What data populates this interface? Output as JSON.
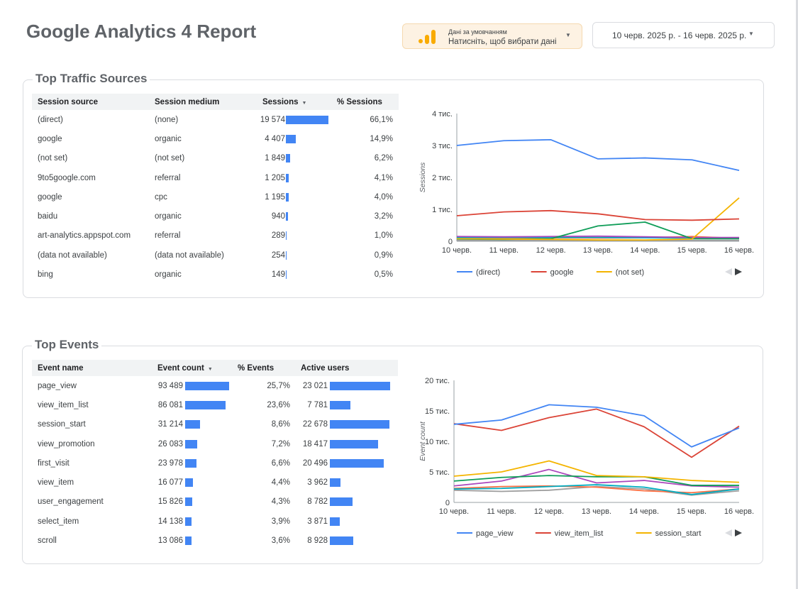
{
  "report": {
    "title": "Google Analytics 4 Report",
    "data_source": {
      "line1": "Дані за умовчанням",
      "line2": "Натисніть, щоб вибрати дані"
    },
    "date_range": "10 черв. 2025 р. - 16 черв. 2025 р."
  },
  "colors": {
    "blue": "#4285f4",
    "red": "#db4437",
    "yellow": "#f4b400",
    "green": "#0f9d58",
    "purple": "#ab47bc",
    "teal": "#00acc1",
    "orange": "#ff7043",
    "gray": "#9e9e9e",
    "datasource_icon": "#f9ab00"
  },
  "traffic": {
    "title": "Top Traffic Sources",
    "columns": [
      "Session source",
      "Session medium",
      "Sessions",
      "% Sessions"
    ],
    "rows": [
      {
        "source": "(direct)",
        "medium": "(none)",
        "sessions": "19 574",
        "sessions_value": 19574,
        "pct": "66,1%"
      },
      {
        "source": "google",
        "medium": "organic",
        "sessions": "4 407",
        "sessions_value": 4407,
        "pct": "14,9%"
      },
      {
        "source": "(not set)",
        "medium": "(not set)",
        "sessions": "1 849",
        "sessions_value": 1849,
        "pct": "6,2%"
      },
      {
        "source": "9to5google.com",
        "medium": "referral",
        "sessions": "1 205",
        "sessions_value": 1205,
        "pct": "4,1%"
      },
      {
        "source": "google",
        "medium": "cpc",
        "sessions": "1 195",
        "sessions_value": 1195,
        "pct": "4,0%"
      },
      {
        "source": "baidu",
        "medium": "organic",
        "sessions": "940",
        "sessions_value": 940,
        "pct": "3,2%"
      },
      {
        "source": "art-analytics.appspot.com",
        "medium": "referral",
        "sessions": "289",
        "sessions_value": 289,
        "pct": "1,0%"
      },
      {
        "source": "(data not available)",
        "medium": "(data not available)",
        "sessions": "254",
        "sessions_value": 254,
        "pct": "0,9%"
      },
      {
        "source": "bing",
        "medium": "organic",
        "sessions": "149",
        "sessions_value": 149,
        "pct": "0,5%"
      }
    ]
  },
  "events": {
    "title": "Top Events",
    "columns": [
      "Event name",
      "Event count",
      "% Events",
      "Active users"
    ],
    "rows": [
      {
        "name": "page_view",
        "count": "93 489",
        "count_value": 93489,
        "pct": "25,7%",
        "users": "23 021",
        "users_value": 23021
      },
      {
        "name": "view_item_list",
        "count": "86 081",
        "count_value": 86081,
        "pct": "23,6%",
        "users": "7 781",
        "users_value": 7781
      },
      {
        "name": "session_start",
        "count": "31 214",
        "count_value": 31214,
        "pct": "8,6%",
        "users": "22 678",
        "users_value": 22678
      },
      {
        "name": "view_promotion",
        "count": "26 083",
        "count_value": 26083,
        "pct": "7,2%",
        "users": "18 417",
        "users_value": 18417
      },
      {
        "name": "first_visit",
        "count": "23 978",
        "count_value": 23978,
        "pct": "6,6%",
        "users": "20 496",
        "users_value": 20496
      },
      {
        "name": "view_item",
        "count": "16 077",
        "count_value": 16077,
        "pct": "4,4%",
        "users": "3 962",
        "users_value": 3962
      },
      {
        "name": "user_engagement",
        "count": "15 826",
        "count_value": 15826,
        "pct": "4,3%",
        "users": "8 782",
        "users_value": 8782
      },
      {
        "name": "select_item",
        "count": "14 138",
        "count_value": 14138,
        "pct": "3,9%",
        "users": "3 871",
        "users_value": 3871
      },
      {
        "name": "scroll",
        "count": "13 086",
        "count_value": 13086,
        "pct": "3,6%",
        "users": "8 928",
        "users_value": 8928
      }
    ]
  },
  "chart_data": [
    {
      "type": "line",
      "ylabel": "Sessions",
      "x": [
        "10 черв.",
        "11 черв.",
        "12 черв.",
        "13 черв.",
        "14 черв.",
        "15 черв.",
        "16 черв."
      ],
      "y_ticks": [
        "0",
        "1 тис.",
        "2 тис.",
        "3 тис.",
        "4 тис."
      ],
      "ylim": [
        0,
        4000
      ],
      "legend_position": "bottom",
      "legend": [
        "(direct)",
        "google",
        "(not set)"
      ],
      "series": [
        {
          "name": "(direct)",
          "color": "#4285f4",
          "values": [
            3000,
            3150,
            3180,
            2580,
            2610,
            2550,
            2220
          ]
        },
        {
          "name": "google",
          "color": "#db4437",
          "values": [
            800,
            920,
            960,
            860,
            680,
            660,
            700
          ]
        },
        {
          "name": "(not set)",
          "color": "#f4b400",
          "values": [
            80,
            70,
            60,
            40,
            40,
            70,
            1360
          ]
        },
        {
          "color": "#0f9d58",
          "values": [
            70,
            60,
            80,
            480,
            600,
            80,
            80
          ]
        },
        {
          "color": "#ab47bc",
          "values": [
            150,
            140,
            150,
            160,
            140,
            120,
            120
          ]
        },
        {
          "color": "#00acc1",
          "values": [
            120,
            120,
            120,
            120,
            110,
            100,
            110
          ]
        },
        {
          "color": "#ff7043",
          "values": [
            110,
            110,
            110,
            100,
            110,
            150,
            90
          ]
        },
        {
          "color": "#9e9e9e",
          "values": [
            30,
            30,
            30,
            30,
            30,
            30,
            30
          ]
        }
      ]
    },
    {
      "type": "line",
      "ylabel": "Event count",
      "x": [
        "10 черв.",
        "11 черв.",
        "12 черв.",
        "13 черв.",
        "14 черв.",
        "15 черв.",
        "16 черв."
      ],
      "y_ticks": [
        "0",
        "5 тис.",
        "10 тис.",
        "15 тис.",
        "20 тис."
      ],
      "ylim": [
        0,
        20000
      ],
      "legend_position": "bottom",
      "legend": [
        "page_view",
        "view_item_list",
        "session_start"
      ],
      "series": [
        {
          "name": "page_view",
          "color": "#4285f4",
          "values": [
            12800,
            13500,
            16000,
            15600,
            14200,
            9100,
            12200
          ]
        },
        {
          "name": "view_item_list",
          "color": "#db4437",
          "values": [
            12900,
            11800,
            13900,
            15300,
            12400,
            7400,
            12500
          ]
        },
        {
          "name": "session_start",
          "color": "#f4b400",
          "values": [
            4300,
            5000,
            6800,
            4400,
            4200,
            3600,
            3300
          ]
        },
        {
          "color": "#0f9d58",
          "values": [
            3500,
            4100,
            4400,
            4200,
            4200,
            2800,
            2800
          ]
        },
        {
          "color": "#ab47bc",
          "values": [
            2700,
            3500,
            5400,
            3200,
            3600,
            2700,
            2500
          ]
        },
        {
          "color": "#00acc1",
          "values": [
            2200,
            2300,
            2600,
            2900,
            2500,
            1300,
            2200
          ]
        },
        {
          "color": "#ff7043",
          "values": [
            2300,
            2600,
            2700,
            2500,
            1900,
            1600,
            2200
          ]
        },
        {
          "color": "#9e9e9e",
          "values": [
            2000,
            1800,
            2000,
            2600,
            2200,
            1200,
            1900
          ]
        }
      ]
    }
  ]
}
